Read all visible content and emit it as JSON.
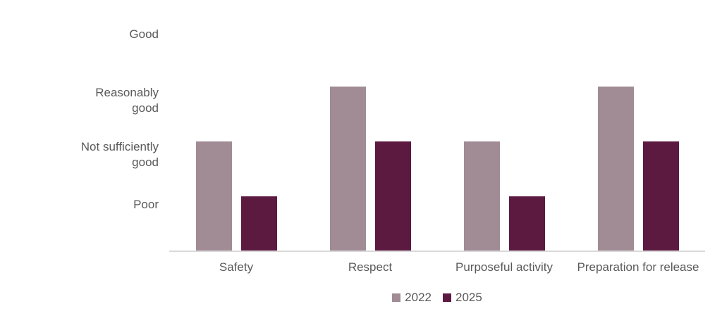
{
  "chart_data": {
    "type": "bar",
    "title": "",
    "categories": [
      "Safety",
      "Respect",
      "Purposeful activity",
      "Preparation for release"
    ],
    "series": [
      {
        "name": "2022",
        "color": "#A18B95",
        "values": [
          2,
          3,
          2,
          3
        ]
      },
      {
        "name": "2025",
        "color": "#5C1A41",
        "values": [
          1,
          2,
          1,
          2
        ]
      }
    ],
    "value_axis": {
      "min": 0,
      "max": 4,
      "tick_labels": [
        {
          "value": 4,
          "lines": [
            "Good"
          ],
          "label": "Good"
        },
        {
          "value": 3,
          "lines": [
            "Reasonably",
            "good"
          ],
          "label": "Reasonably good"
        },
        {
          "value": 2,
          "lines": [
            "Not sufficiently",
            "good"
          ],
          "label": "Not sufficiently good"
        },
        {
          "value": 1,
          "lines": [
            "Poor"
          ],
          "label": "Poor"
        }
      ]
    },
    "legend": {
      "position": "bottom",
      "entries": [
        "2022",
        "2025"
      ]
    },
    "grid": false,
    "colors": {
      "axis_line": "#D9D9D9",
      "text": "#595959",
      "background": "#FFFFFF"
    }
  }
}
